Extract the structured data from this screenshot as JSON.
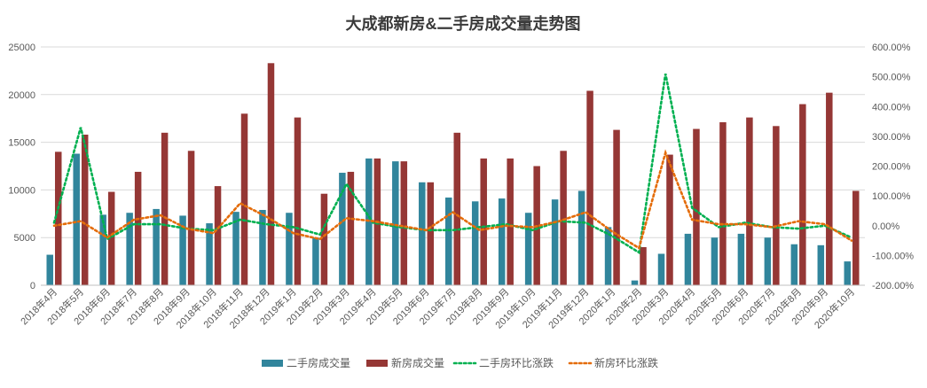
{
  "chart_data": {
    "type": "bar",
    "title": "大成都新房&二手房成交量走势图",
    "categories": [
      "2018年4月",
      "2018年5月",
      "2018年6月",
      "2018年7月",
      "2018年8月",
      "2018年9月",
      "2018年10月",
      "2018年11月",
      "2018年12月",
      "2019年1月",
      "2019年2月",
      "2019年3月",
      "2019年4月",
      "2019年5月",
      "2019年6月",
      "2019年7月",
      "2019年8月",
      "2019年9月",
      "2019年10月",
      "2019年11月",
      "2019年12月",
      "2020年1月",
      "2020年2月",
      "2020年3月",
      "2020年4月",
      "2020年5月",
      "2020年6月",
      "2020年7月",
      "2020年8月",
      "2020年9月",
      "2020年10月"
    ],
    "y_left": {
      "ticks": [
        "0",
        "5000",
        "10000",
        "15000",
        "20000",
        "25000"
      ],
      "ylim": [
        0,
        25000
      ]
    },
    "y_right": {
      "ticks": [
        "-200.00%",
        "-100.00%",
        "0.00%",
        "100.00%",
        "200.00%",
        "300.00%",
        "400.00%",
        "500.00%",
        "600.00%"
      ],
      "ylim": [
        -200,
        600
      ]
    },
    "grid": true,
    "legend_position": "bottom",
    "series": [
      {
        "name": "二手房成交量",
        "kind": "bar",
        "axis": "left",
        "color": "#31859C",
        "values": [
          3200,
          13800,
          7400,
          7600,
          8000,
          7300,
          6500,
          7700,
          7900,
          7600,
          5000,
          11800,
          13300,
          13000,
          10800,
          9200,
          8800,
          9100,
          7600,
          9000,
          9900,
          6100,
          500,
          3300,
          5400,
          5000,
          5400,
          5000,
          4300,
          4200,
          2500
        ]
      },
      {
        "name": "新房成交量",
        "kind": "bar",
        "axis": "left",
        "color": "#953735",
        "values": [
          14000,
          15800,
          9800,
          11900,
          16000,
          14100,
          10400,
          18000,
          23300,
          17600,
          9600,
          11900,
          13300,
          13000,
          10800,
          16000,
          13300,
          13300,
          12500,
          14100,
          20400,
          16300,
          4000,
          13700,
          16400,
          17100,
          17600,
          16700,
          19000,
          20200,
          9900
        ]
      },
      {
        "name": "二手房环比涨跌",
        "kind": "line",
        "axis": "right",
        "color": "#00B050",
        "values": [
          10,
          330,
          -45,
          5,
          5,
          -10,
          -15,
          20,
          5,
          -5,
          -30,
          140,
          10,
          -5,
          -15,
          -15,
          -5,
          5,
          -15,
          15,
          10,
          -35,
          -90,
          510,
          60,
          -5,
          10,
          -5,
          -10,
          0,
          -40
        ]
      },
      {
        "name": "新房环比涨跌",
        "kind": "line",
        "axis": "right",
        "color": "#E46C0A",
        "values": [
          0,
          15,
          -40,
          20,
          35,
          -10,
          -25,
          75,
          30,
          -25,
          -45,
          25,
          15,
          0,
          -15,
          45,
          -15,
          0,
          -5,
          15,
          45,
          -20,
          -75,
          245,
          20,
          5,
          5,
          -5,
          15,
          5,
          -50
        ]
      }
    ]
  }
}
